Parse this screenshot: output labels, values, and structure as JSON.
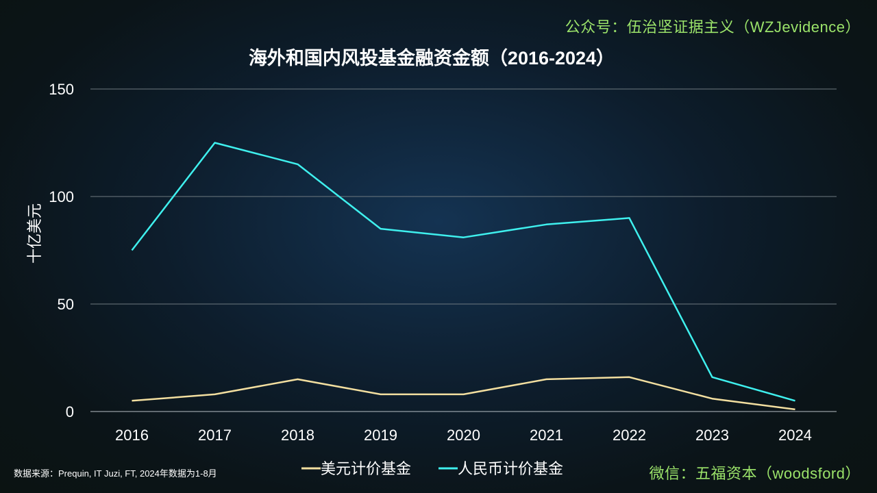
{
  "watermark_top": "公众号：伍治坚证据主义（WZJevidence）",
  "watermark_bottom": "微信：五福资本（woodsford）",
  "source_note": "数据来源：Prequin, IT Juzi, FT, 2024年数据为1-8月",
  "chart_data": {
    "type": "line",
    "title": "海外和国内风投基金融资金额（2016-2024）",
    "xlabel": "",
    "ylabel": "十亿美元",
    "x": [
      "2016",
      "2017",
      "2018",
      "2019",
      "2020",
      "2021",
      "2022",
      "2023",
      "2024"
    ],
    "ylim": [
      0,
      150
    ],
    "yticks": [
      0,
      50,
      100,
      150
    ],
    "grid": true,
    "legend_position": "bottom",
    "series": [
      {
        "name": "美元计价基金",
        "color": "#f3dfa0",
        "values": [
          5,
          8,
          15,
          8,
          8,
          15,
          16,
          6,
          1
        ]
      },
      {
        "name": "人民币计价基金",
        "color": "#3ff0ee",
        "values": [
          75,
          125,
          115,
          85,
          81,
          87,
          90,
          16,
          5
        ]
      }
    ]
  }
}
